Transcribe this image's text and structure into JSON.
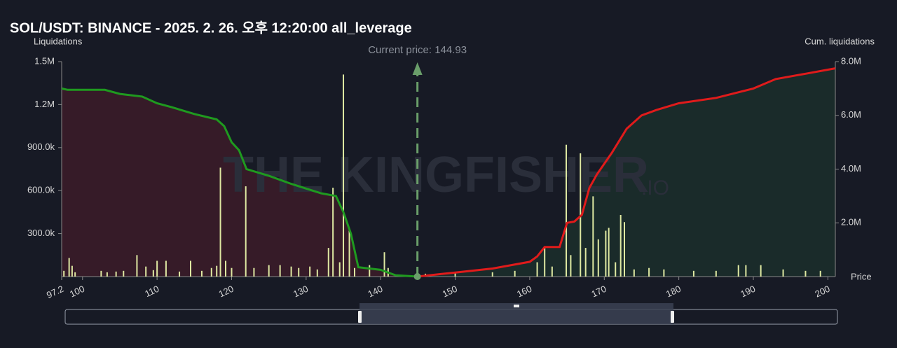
{
  "chart_data": {
    "type": "liquidation",
    "title": "SOL/USDT: BINANCE - 2025. 2. 26. 오후 12:20:00 all_leverage",
    "y_label": "Liquidations",
    "y2_label": "Cum. liquidations",
    "x_label": "Price",
    "annotation": "Current price: 144.93",
    "current_price": 144.93,
    "watermark": "THE KINGFISHER",
    "watermark_suffix": ".IO",
    "xlim": [
      97.2,
      201
    ],
    "xticks": [
      97.2,
      100,
      110,
      120,
      130,
      140,
      150,
      160,
      170,
      180,
      190,
      200
    ],
    "ylim": [
      0,
      1500000
    ],
    "yticks": [
      {
        "value": 300000,
        "label": "300.0k"
      },
      {
        "value": 600000,
        "label": "600.0k"
      },
      {
        "value": 900000,
        "label": "900.0k"
      },
      {
        "value": 1200000,
        "label": "1.2M"
      },
      {
        "value": 1500000,
        "label": "1.5M"
      }
    ],
    "y2lim": [
      0,
      8000000
    ],
    "y2ticks": [
      {
        "value": 2000000,
        "label": "2.0M"
      },
      {
        "value": 4000000,
        "label": "4.0M"
      },
      {
        "value": 6000000,
        "label": "6.0M"
      },
      {
        "value": 8000000,
        "label": "8.0M"
      }
    ],
    "bars": {
      "color": "#dfe9a2",
      "x": [
        97.5,
        98.2,
        98.6,
        99,
        102.5,
        103.3,
        104.5,
        105.5,
        107.3,
        108.5,
        109.5,
        110,
        111.2,
        113,
        114.5,
        116,
        117.3,
        118,
        118.5,
        119.2,
        120,
        121.9,
        123,
        125,
        126.5,
        128,
        129,
        130.5,
        131.5,
        133,
        133.6,
        134.5,
        135,
        135.8,
        136.5,
        138.5,
        140.5,
        141,
        146,
        150,
        155,
        158,
        161,
        162,
        163,
        164.9,
        165.5,
        166.8,
        167.5,
        168.5,
        169.2,
        170.2,
        170.6,
        171.5,
        172.2,
        172.7,
        174,
        176,
        178,
        182,
        185,
        188,
        189,
        191,
        194,
        197,
        199
      ],
      "values": [
        40000,
        130000,
        75000,
        30000,
        40000,
        30000,
        35000,
        40000,
        150000,
        70000,
        45000,
        110000,
        110000,
        35000,
        110000,
        40000,
        60000,
        75000,
        760000,
        110000,
        60000,
        630000,
        60000,
        80000,
        80000,
        70000,
        60000,
        70000,
        50000,
        200000,
        620000,
        100000,
        1410000,
        330000,
        60000,
        80000,
        170000,
        60000,
        20000,
        30000,
        30000,
        40000,
        100000,
        200000,
        70000,
        920000,
        150000,
        860000,
        200000,
        560000,
        260000,
        320000,
        340000,
        100000,
        430000,
        380000,
        50000,
        60000,
        50000,
        40000,
        40000,
        80000,
        80000,
        80000,
        50000,
        40000,
        40000
      ]
    },
    "left_cumulative": {
      "color": "#1f9a1f",
      "area_color": "#361b28",
      "axis": "y2",
      "x": [
        97.2,
        98,
        100,
        103,
        105,
        108,
        110,
        112,
        115,
        118,
        119,
        120,
        121,
        122,
        125,
        128,
        132,
        134,
        135,
        136,
        137,
        140,
        142,
        144.93
      ],
      "values": [
        7000000,
        6950000,
        6950000,
        6950000,
        6800000,
        6700000,
        6450000,
        6300000,
        6050000,
        5850000,
        5600000,
        5000000,
        4700000,
        4000000,
        3750000,
        3450000,
        3100000,
        3000000,
        2400000,
        1600000,
        350000,
        250000,
        50000,
        0
      ]
    },
    "right_cumulative": {
      "color": "#e01b1b",
      "area_color": "#1a2b2a",
      "axis": "y2",
      "x": [
        144.93,
        150,
        155,
        160,
        161,
        162,
        164,
        165,
        166,
        167,
        168,
        169,
        171,
        173,
        175,
        177,
        180,
        185,
        190,
        193,
        197,
        200,
        201
      ],
      "values": [
        0,
        150000,
        300000,
        550000,
        750000,
        1100000,
        1100000,
        2000000,
        2050000,
        2300000,
        3300000,
        3800000,
        4600000,
        5500000,
        6000000,
        6200000,
        6450000,
        6650000,
        7000000,
        7350000,
        7550000,
        7700000,
        7750000
      ]
    }
  }
}
